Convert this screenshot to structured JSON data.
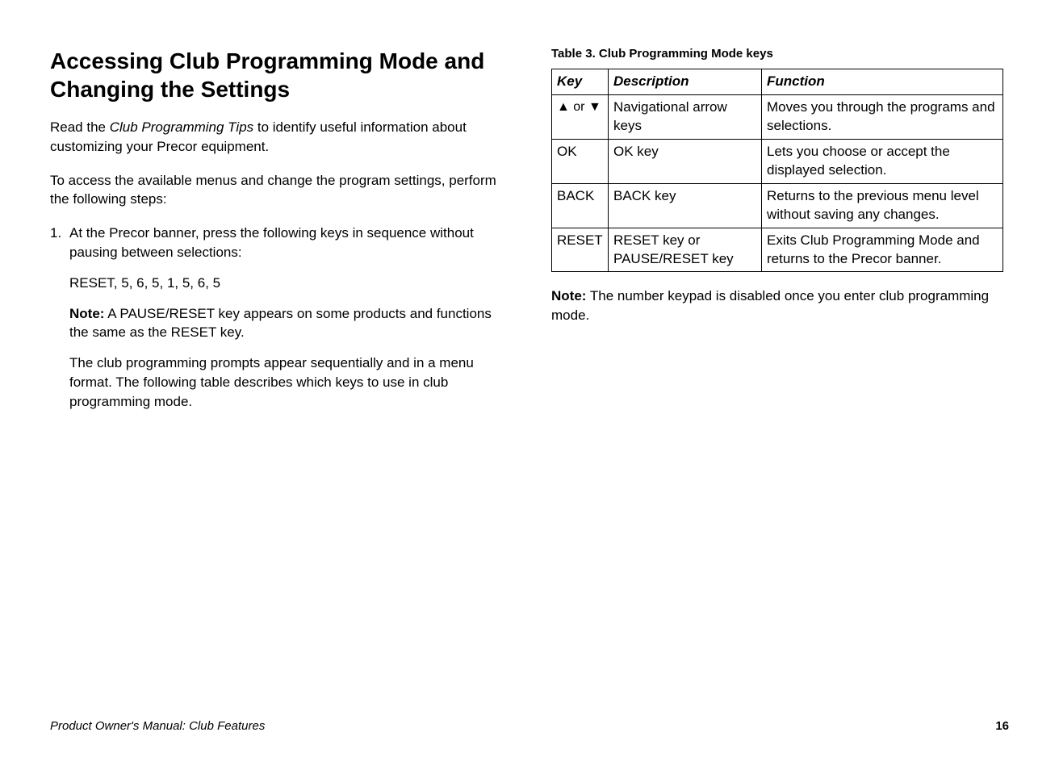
{
  "left": {
    "heading": "Accessing Club Programming Mode and Changing the Settings",
    "intro1_prefix": "Read the ",
    "intro1_italic": "Club Programming Tips",
    "intro1_suffix": " to identify useful information about customizing your Precor equipment.",
    "intro2": "To access the available menus and change the program settings, perform the following steps:",
    "step1_num": "1.",
    "step1": "At the Precor banner, press the following keys in sequence without pausing between selections:",
    "keyseq": "RESET, 5, 6, 5, 1, 5, 6, 5",
    "note_label": "Note:",
    "note1_body": " A PAUSE/RESET key appears on some products and functions the same as the RESET key.",
    "para2": "The club programming prompts appear sequentially and in a menu format. The following table describes which keys to use in club programming mode."
  },
  "right": {
    "table_caption": "Table 3. Club Programming Mode keys",
    "headers": {
      "key": "Key",
      "desc": "Description",
      "func": "Function"
    },
    "rows": [
      {
        "key": "▲ or ▼",
        "desc": "Navigational arrow keys",
        "func": "Moves you through the programs and selections."
      },
      {
        "key": "OK",
        "desc": "OK key",
        "func": "Lets you choose or accept the displayed selection."
      },
      {
        "key": "BACK",
        "desc": "BACK key",
        "func": "Returns to the previous menu level without saving any changes."
      },
      {
        "key": "RESET",
        "desc": "RESET key or PAUSE/RESET key",
        "func": "Exits Club Programming Mode and returns to the Precor banner."
      }
    ],
    "note_label": "Note:",
    "note_body": " The number keypad is disabled once you enter club programming mode."
  },
  "footer": {
    "left": "Product Owner's Manual: Club Features",
    "page": "16"
  }
}
